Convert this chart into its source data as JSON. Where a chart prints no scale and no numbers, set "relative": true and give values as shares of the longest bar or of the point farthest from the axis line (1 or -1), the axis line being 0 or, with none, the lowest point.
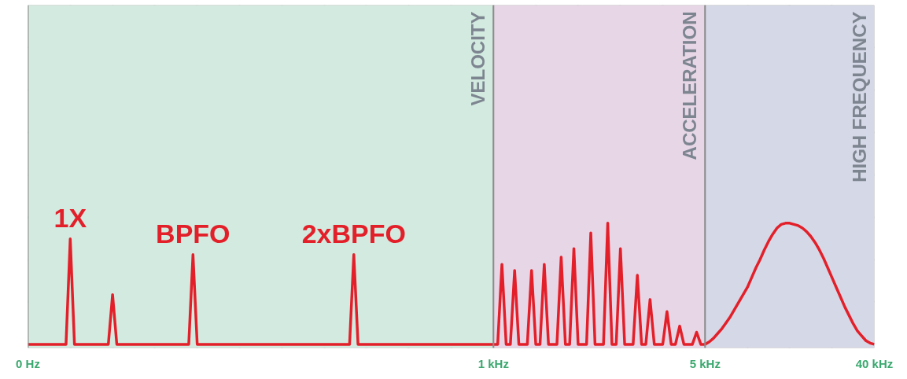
{
  "chart_data": {
    "type": "line",
    "relative": true,
    "grid": true,
    "categories": [
      "0 Hz",
      null,
      null,
      null,
      null,
      null,
      null,
      null,
      null,
      null,
      null,
      null,
      null,
      null,
      null,
      null,
      null,
      null,
      null,
      null,
      null,
      null,
      null,
      null,
      null,
      null,
      null,
      null,
      null,
      null,
      null,
      null,
      null,
      null,
      null,
      null,
      null,
      null,
      null,
      null,
      null,
      null,
      null,
      null,
      null,
      null,
      null,
      null,
      null,
      null,
      null,
      null,
      null,
      null,
      null,
      null,
      null,
      null,
      null,
      null,
      null,
      null,
      null,
      null,
      null,
      null,
      null,
      null,
      null,
      null,
      null,
      null,
      null,
      null,
      null,
      null,
      null,
      null,
      null,
      null,
      null,
      null,
      null,
      null,
      null,
      null,
      null,
      null,
      null,
      null,
      null,
      null,
      null,
      null,
      null,
      null,
      null,
      null,
      null,
      null,
      null,
      null,
      null,
      null,
      null,
      null,
      null,
      null,
      null,
      null,
      "1 kHz",
      null,
      null,
      null,
      null,
      null,
      null,
      null,
      null,
      null,
      null,
      null,
      null,
      null,
      null,
      null,
      null,
      null,
      null,
      null,
      null,
      null,
      null,
      null,
      null,
      null,
      null,
      null,
      null,
      null,
      null,
      null,
      null,
      null,
      null,
      null,
      null,
      null,
      null,
      null,
      null,
      null,
      null,
      null,
      null,
      null,
      null,
      null,
      null,
      null,
      "5 kHz",
      null,
      null,
      null,
      null,
      null,
      null,
      null,
      null,
      null,
      null,
      null,
      null,
      null,
      null,
      null,
      null,
      null,
      null,
      null,
      null,
      null,
      null,
      null,
      null,
      null,
      null,
      null,
      null,
      null,
      null,
      null,
      null,
      null,
      null,
      null,
      null,
      null,
      null,
      null,
      "40 kHz"
    ],
    "series": [
      {
        "color": "#e3202a",
        "line_style": "solid",
        "marker": "none",
        "values": [
          0,
          0,
          0,
          0,
          0,
          0,
          0,
          0,
          0,
          0,
          0.87,
          0,
          0,
          0,
          0,
          0,
          0,
          0,
          0,
          0,
          0.41,
          0,
          0,
          0,
          0,
          0,
          0,
          0,
          0,
          0,
          0,
          0,
          0,
          0,
          0,
          0,
          0,
          0,
          0,
          0.74,
          0,
          0,
          0,
          0,
          0,
          0,
          0,
          0,
          0,
          0,
          0,
          0,
          0,
          0,
          0,
          0,
          0,
          0,
          0,
          0,
          0,
          0,
          0,
          0,
          0,
          0,
          0,
          0,
          0,
          0,
          0,
          0,
          0,
          0,
          0,
          0,
          0,
          0.74,
          0,
          0,
          0,
          0,
          0,
          0,
          0,
          0,
          0,
          0,
          0,
          0,
          0,
          0,
          0,
          0,
          0,
          0,
          0,
          0,
          0,
          0,
          0,
          0,
          0,
          0,
          0,
          0,
          0,
          0,
          0,
          0,
          0,
          0,
          0.66,
          0,
          0,
          0.61,
          0,
          0,
          0,
          0.61,
          0,
          0,
          0.66,
          0,
          0,
          0,
          0.72,
          0,
          0,
          0.79,
          0,
          0,
          0,
          0.92,
          0,
          0,
          0,
          1.0,
          0,
          0,
          0.79,
          0,
          0,
          0,
          0.57,
          0,
          0,
          0.37,
          0,
          0,
          0,
          0.27,
          0,
          0,
          0.15,
          0,
          0,
          0,
          0.1,
          0,
          0,
          0.02,
          0.05,
          0.09,
          0.13,
          0.18,
          0.23,
          0.29,
          0.35,
          0.41,
          0.47,
          0.55,
          0.63,
          0.7,
          0.78,
          0.85,
          0.91,
          0.96,
          0.99,
          1.0,
          1.0,
          0.99,
          0.98,
          0.96,
          0.93,
          0.89,
          0.84,
          0.78,
          0.71,
          0.63,
          0.55,
          0.47,
          0.39,
          0.31,
          0.24,
          0.17,
          0.11,
          0.07,
          0.03,
          0.01,
          0
        ]
      }
    ],
    "annotations": [
      {
        "text": "1X",
        "y": 0.87
      },
      {
        "text": "BPFO",
        "y": 0.74
      },
      {
        "text": "2xBPFO",
        "y": 0.74
      }
    ],
    "bands": [
      {
        "axis": "x",
        "from": "0 Hz",
        "to": "1 kHz",
        "label": "VELOCITY",
        "color": "#d2eadf"
      },
      {
        "axis": "x",
        "from": "1 kHz",
        "to": "5 kHz",
        "label": "ACCELERATION",
        "color": "#e7d6e6"
      },
      {
        "axis": "x",
        "from": "5 kHz",
        "to": "40 kHz",
        "label": "HIGH FREQUENCY",
        "color": "#d5d8e6"
      }
    ]
  }
}
